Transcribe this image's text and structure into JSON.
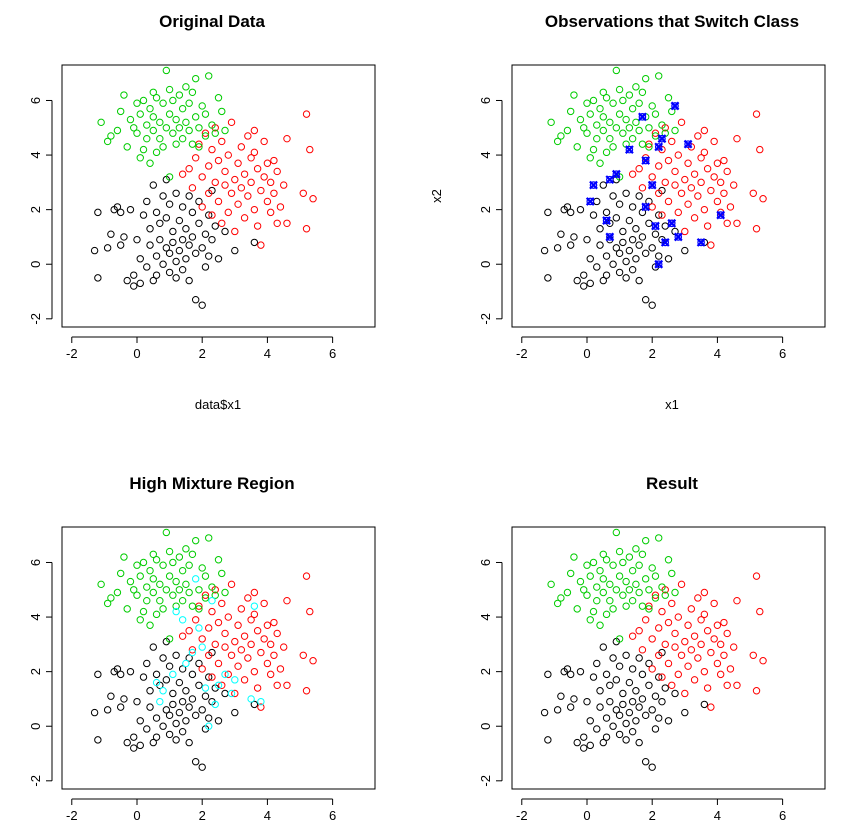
{
  "colors": {
    "black": "#000000",
    "red": "#ff0000",
    "green": "#00cc00",
    "cyan": "#00ffff",
    "blue": "#0000ff"
  },
  "chart_data": [
    {
      "type": "scatter",
      "title": "Original Data",
      "xlabel": "data$x1",
      "ylabel": "",
      "xlim": [
        -2.3,
        7.3
      ],
      "ylim": [
        -2.3,
        7.3
      ],
      "xticks": [
        "-2",
        "0",
        "2",
        "4",
        "6"
      ],
      "yticks": [
        "-2",
        "0",
        "2",
        "4",
        "6"
      ],
      "marker": "circle",
      "series": [
        {
          "color": "black",
          "points": [
            [
              -1.3,
              0.5
            ],
            [
              -1.2,
              1.9
            ],
            [
              -1.2,
              -0.5
            ],
            [
              -0.9,
              0.6
            ],
            [
              -0.8,
              1.1
            ],
            [
              -0.7,
              2.0
            ],
            [
              -0.6,
              2.1
            ],
            [
              -0.5,
              1.9
            ],
            [
              -0.5,
              0.7
            ],
            [
              -0.4,
              1.0
            ],
            [
              -0.3,
              -0.6
            ],
            [
              -0.2,
              2.0
            ],
            [
              -0.1,
              -0.8
            ],
            [
              -0.1,
              -0.4
            ],
            [
              0.0,
              0.9
            ],
            [
              0.1,
              -0.7
            ],
            [
              0.1,
              0.2
            ],
            [
              0.2,
              1.8
            ],
            [
              0.3,
              2.3
            ],
            [
              0.3,
              -0.1
            ],
            [
              0.4,
              1.3
            ],
            [
              0.4,
              0.7
            ],
            [
              0.5,
              2.9
            ],
            [
              0.5,
              -0.6
            ],
            [
              0.6,
              1.9
            ],
            [
              0.6,
              0.3
            ],
            [
              0.6,
              -0.4
            ],
            [
              0.7,
              1.5
            ],
            [
              0.7,
              0.9
            ],
            [
              0.8,
              2.5
            ],
            [
              0.8,
              0.0
            ],
            [
              0.9,
              1.7
            ],
            [
              0.9,
              3.1
            ],
            [
              0.9,
              0.6
            ],
            [
              1.0,
              2.2
            ],
            [
              1.0,
              -0.3
            ],
            [
              1.0,
              0.4
            ],
            [
              1.1,
              1.2
            ],
            [
              1.1,
              0.8
            ],
            [
              1.2,
              2.6
            ],
            [
              1.2,
              0.1
            ],
            [
              1.2,
              -0.5
            ],
            [
              1.3,
              1.6
            ],
            [
              1.3,
              0.5
            ],
            [
              1.4,
              2.1
            ],
            [
              1.4,
              0.9
            ],
            [
              1.4,
              -0.2
            ],
            [
              1.5,
              1.3
            ],
            [
              1.5,
              0.2
            ],
            [
              1.6,
              2.5
            ],
            [
              1.6,
              0.7
            ],
            [
              1.6,
              -0.6
            ],
            [
              1.7,
              1.0
            ],
            [
              1.7,
              1.9
            ],
            [
              1.8,
              0.4
            ],
            [
              1.8,
              -1.3
            ],
            [
              1.9,
              2.3
            ],
            [
              1.9,
              1.5
            ],
            [
              2.0,
              0.6
            ],
            [
              2.0,
              -1.5
            ],
            [
              2.1,
              1.1
            ],
            [
              2.1,
              -0.1
            ],
            [
              2.2,
              1.8
            ],
            [
              2.2,
              0.3
            ],
            [
              2.3,
              2.7
            ],
            [
              2.3,
              0.9
            ],
            [
              2.4,
              1.4
            ],
            [
              2.5,
              0.2
            ],
            [
              2.7,
              1.2
            ],
            [
              3.0,
              0.5
            ],
            [
              3.6,
              0.8
            ]
          ]
        },
        {
          "color": "red",
          "points": [
            [
              1.4,
              3.3
            ],
            [
              1.6,
              3.5
            ],
            [
              1.7,
              2.8
            ],
            [
              1.8,
              3.9
            ],
            [
              1.9,
              4.4
            ],
            [
              2.0,
              2.1
            ],
            [
              2.0,
              3.2
            ],
            [
              2.1,
              4.8
            ],
            [
              2.2,
              2.6
            ],
            [
              2.2,
              3.6
            ],
            [
              2.3,
              1.8
            ],
            [
              2.3,
              4.2
            ],
            [
              2.4,
              3.0
            ],
            [
              2.4,
              5.0
            ],
            [
              2.5,
              2.3
            ],
            [
              2.5,
              3.8
            ],
            [
              2.6,
              1.5
            ],
            [
              2.6,
              4.5
            ],
            [
              2.7,
              2.9
            ],
            [
              2.7,
              3.4
            ],
            [
              2.8,
              1.9
            ],
            [
              2.8,
              4.0
            ],
            [
              2.9,
              2.6
            ],
            [
              2.9,
              5.2
            ],
            [
              3.0,
              3.1
            ],
            [
              3.0,
              1.2
            ],
            [
              3.1,
              3.7
            ],
            [
              3.1,
              2.2
            ],
            [
              3.2,
              4.3
            ],
            [
              3.2,
              2.8
            ],
            [
              3.3,
              3.3
            ],
            [
              3.3,
              1.7
            ],
            [
              3.4,
              4.7
            ],
            [
              3.4,
              2.5
            ],
            [
              3.5,
              3.9
            ],
            [
              3.5,
              3.0
            ],
            [
              3.6,
              2.0
            ],
            [
              3.6,
              4.1
            ],
            [
              3.7,
              3.5
            ],
            [
              3.7,
              1.4
            ],
            [
              3.8,
              2.7
            ],
            [
              3.8,
              0.7
            ],
            [
              3.9,
              3.2
            ],
            [
              3.9,
              4.5
            ],
            [
              4.0,
              2.3
            ],
            [
              4.0,
              3.7
            ],
            [
              4.1,
              1.9
            ],
            [
              4.1,
              3.0
            ],
            [
              4.2,
              2.6
            ],
            [
              4.3,
              1.5
            ],
            [
              4.3,
              3.4
            ],
            [
              4.4,
              2.1
            ],
            [
              4.5,
              2.9
            ],
            [
              4.6,
              1.5
            ],
            [
              4.6,
              4.6
            ],
            [
              5.1,
              2.6
            ],
            [
              5.2,
              5.5
            ],
            [
              5.2,
              1.3
            ],
            [
              5.3,
              4.2
            ],
            [
              5.4,
              2.4
            ],
            [
              4.2,
              3.8
            ],
            [
              3.6,
              4.9
            ]
          ]
        },
        {
          "color": "green",
          "points": [
            [
              -1.1,
              5.2
            ],
            [
              -0.9,
              4.5
            ],
            [
              -0.8,
              4.7
            ],
            [
              -0.6,
              4.9
            ],
            [
              -0.5,
              5.6
            ],
            [
              -0.4,
              6.2
            ],
            [
              -0.3,
              4.3
            ],
            [
              -0.2,
              5.3
            ],
            [
              -0.1,
              5.0
            ],
            [
              0.0,
              4.8
            ],
            [
              0.0,
              5.9
            ],
            [
              0.1,
              3.9
            ],
            [
              0.1,
              5.5
            ],
            [
              0.2,
              4.2
            ],
            [
              0.2,
              6.0
            ],
            [
              0.3,
              5.1
            ],
            [
              0.3,
              4.6
            ],
            [
              0.4,
              5.7
            ],
            [
              0.4,
              3.7
            ],
            [
              0.5,
              6.3
            ],
            [
              0.5,
              4.9
            ],
            [
              0.5,
              5.4
            ],
            [
              0.6,
              4.1
            ],
            [
              0.6,
              6.1
            ],
            [
              0.7,
              5.2
            ],
            [
              0.7,
              4.6
            ],
            [
              0.8,
              5.9
            ],
            [
              0.8,
              4.3
            ],
            [
              0.9,
              7.1
            ],
            [
              0.9,
              5.0
            ],
            [
              1.0,
              6.4
            ],
            [
              1.0,
              5.5
            ],
            [
              1.0,
              3.2
            ],
            [
              1.1,
              4.8
            ],
            [
              1.1,
              6.0
            ],
            [
              1.2,
              5.3
            ],
            [
              1.2,
              4.4
            ],
            [
              1.3,
              6.2
            ],
            [
              1.3,
              5.0
            ],
            [
              1.4,
              5.7
            ],
            [
              1.4,
              4.6
            ],
            [
              1.5,
              6.5
            ],
            [
              1.5,
              5.2
            ],
            [
              1.6,
              4.9
            ],
            [
              1.6,
              5.9
            ],
            [
              1.7,
              4.4
            ],
            [
              1.7,
              6.3
            ],
            [
              1.8,
              5.4
            ],
            [
              1.8,
              6.8
            ],
            [
              1.9,
              5.0
            ],
            [
              1.9,
              4.3
            ],
            [
              2.0,
              5.8
            ],
            [
              2.1,
              4.7
            ],
            [
              2.1,
              5.5
            ],
            [
              2.2,
              6.9
            ],
            [
              2.3,
              5.1
            ],
            [
              2.4,
              4.8
            ],
            [
              2.5,
              6.1
            ],
            [
              2.6,
              5.6
            ],
            [
              2.7,
              4.9
            ]
          ]
        }
      ]
    },
    {
      "type": "scatter",
      "title": "Observations that Switch Class",
      "xlabel": "x1",
      "ylabel": "x2",
      "xlim": [
        -2.3,
        7.3
      ],
      "ylim": [
        -2.3,
        7.3
      ],
      "xticks": [
        "-2",
        "0",
        "2",
        "4",
        "6"
      ],
      "yticks": [
        "-2",
        "0",
        "2",
        "4",
        "6"
      ],
      "marker": "circle",
      "highlight": {
        "color": "blue",
        "marker": "x",
        "points": [
          [
            0.2,
            2.9
          ],
          [
            0.1,
            2.3
          ],
          [
            0.6,
            1.6
          ],
          [
            0.7,
            3.1
          ],
          [
            0.9,
            3.3
          ],
          [
            0.7,
            1.0
          ],
          [
            1.3,
            4.2
          ],
          [
            1.8,
            3.8
          ],
          [
            1.8,
            2.1
          ],
          [
            2.0,
            2.9
          ],
          [
            2.1,
            1.4
          ],
          [
            2.2,
            4.3
          ],
          [
            2.3,
            4.6
          ],
          [
            2.2,
            0.0
          ],
          [
            2.4,
            0.8
          ],
          [
            2.6,
            1.5
          ],
          [
            2.7,
            5.8
          ],
          [
            2.8,
            1.0
          ],
          [
            1.7,
            5.4
          ],
          [
            3.1,
            4.4
          ],
          [
            3.5,
            0.8
          ],
          [
            4.1,
            1.8
          ]
        ]
      }
    },
    {
      "type": "scatter",
      "title": "High Mixture Region",
      "xlabel": "",
      "ylabel": "",
      "xlim": [
        -2.3,
        7.3
      ],
      "ylim": [
        -2.3,
        7.3
      ],
      "xticks": [
        "-2",
        "0",
        "2",
        "4",
        "6"
      ],
      "yticks": [
        "-2",
        "0",
        "2",
        "4",
        "6"
      ],
      "marker": "circle",
      "mixture_region": {
        "color": "cyan",
        "points": [
          [
            0.6,
            1.6
          ],
          [
            0.7,
            0.9
          ],
          [
            0.8,
            1.3
          ],
          [
            1.2,
            4.2
          ],
          [
            1.4,
            3.9
          ],
          [
            1.7,
            2.7
          ],
          [
            1.8,
            5.4
          ],
          [
            1.9,
            3.6
          ],
          [
            2.0,
            2.9
          ],
          [
            2.1,
            1.4
          ],
          [
            2.2,
            0.0
          ],
          [
            2.3,
            4.6
          ],
          [
            2.4,
            0.8
          ],
          [
            2.5,
            1.5
          ],
          [
            2.7,
            1.9
          ],
          [
            2.9,
            1.2
          ],
          [
            3.0,
            1.7
          ],
          [
            3.5,
            1.0
          ],
          [
            3.6,
            4.4
          ],
          [
            3.8,
            0.9
          ],
          [
            1.5,
            2.3
          ],
          [
            1.1,
            1.9
          ]
        ]
      }
    },
    {
      "type": "scatter",
      "title": "Result",
      "xlabel": "",
      "ylabel": "",
      "xlim": [
        -2.3,
        7.3
      ],
      "ylim": [
        -2.3,
        7.3
      ],
      "xticks": [
        "-2",
        "0",
        "2",
        "4",
        "6"
      ],
      "yticks": [
        "-2",
        "0",
        "2",
        "4",
        "6"
      ],
      "marker": "circle"
    }
  ]
}
